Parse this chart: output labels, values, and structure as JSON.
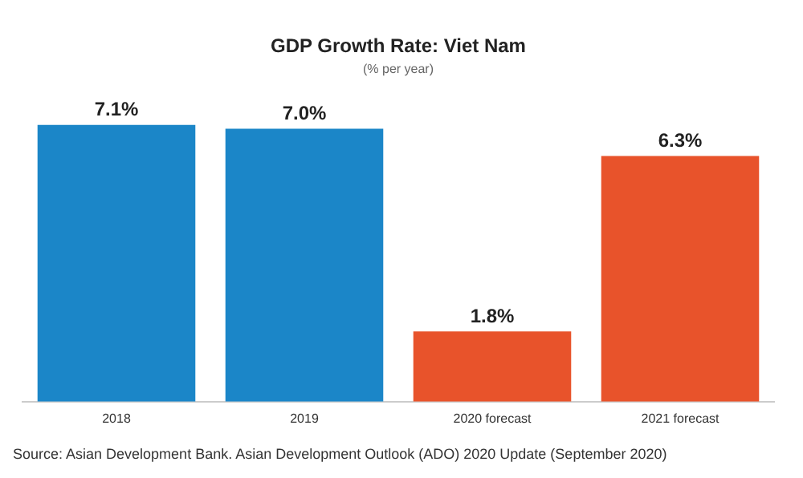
{
  "chart_data": {
    "type": "bar",
    "title": "GDP Growth Rate: Viet Nam",
    "subtitle": "(% per year)",
    "categories": [
      "2018",
      "2019",
      "2020 forecast",
      "2021 forecast"
    ],
    "values": [
      7.1,
      7.0,
      1.8,
      6.3
    ],
    "colors": [
      "#1b86c8",
      "#1b86c8",
      "#e8532b",
      "#e8532b"
    ],
    "value_labels": [
      "7.1%",
      "7.0%",
      "1.8%",
      "6.3%"
    ],
    "grid": false,
    "legend": false,
    "annotations": [
      "Source: Asian Development Bank. Asian Development Outlook (ADO) 2020 Update (September 2020)"
    ]
  }
}
